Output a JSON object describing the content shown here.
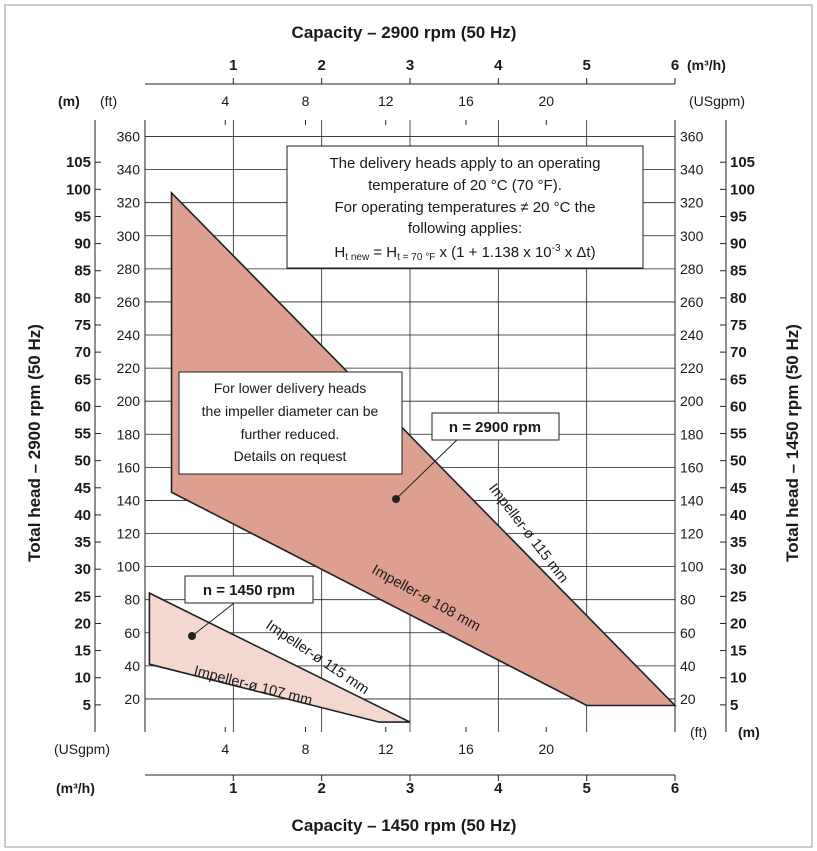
{
  "chart_data": {
    "type": "area",
    "title_top": "Capacity – 2900 rpm (50 Hz)",
    "title_bottom": "Capacity – 1450 rpm (50 Hz)",
    "ylabel_left": "Total head – 2900 rpm (50 Hz)",
    "ylabel_right": "Total head – 1450 rpm (50 Hz)",
    "units": {
      "m3h_top": "(m³/h)",
      "m3h_bottom": "(m³/h)",
      "usgpm_top": "(USgpm)",
      "usgpm_bottom": "(USgpm)",
      "m_left": "(m)",
      "m_right": "(m)",
      "ft_left": "(ft)",
      "ft_right": "(ft)"
    },
    "xlim_m3h": [
      0,
      6
    ],
    "ylim_ft": [
      0,
      370
    ],
    "x_ticks_m3h": [
      "1",
      "2",
      "3",
      "4",
      "5",
      "6"
    ],
    "x_ticks_usgpm": [
      "4",
      "8",
      "12",
      "16",
      "20"
    ],
    "y_ticks_ft": [
      "20",
      "40",
      "60",
      "80",
      "100",
      "120",
      "140",
      "160",
      "180",
      "200",
      "220",
      "240",
      "260",
      "280",
      "300",
      "320",
      "340",
      "360"
    ],
    "y_ticks_m_left": [
      "5",
      "10",
      "15",
      "20",
      "25",
      "30",
      "35",
      "40",
      "45",
      "50",
      "55",
      "60",
      "65",
      "70",
      "75",
      "80",
      "85",
      "90",
      "95",
      "100",
      "105"
    ],
    "y_ticks_m_right": [
      "5",
      "10",
      "15",
      "20",
      "25",
      "30",
      "35",
      "40",
      "45",
      "50",
      "55",
      "60",
      "65",
      "70",
      "75",
      "80",
      "85",
      "90",
      "95",
      "100",
      "105"
    ],
    "series": [
      {
        "name": "n = 2900 rpm",
        "color": "#dda090",
        "upper_curve_label": "Impeller-ø 115 mm",
        "lower_curve_label": "Impeller-ø 108 mm",
        "polygon": [
          [
            0.3,
            326
          ],
          [
            0.3,
            145
          ],
          [
            5,
            16
          ],
          [
            6,
            16
          ]
        ]
      },
      {
        "name": "n = 1450 rpm",
        "color": "#f4d8d0",
        "upper_curve_label": "Impeller-ø 115 mm",
        "lower_curve_label": "Impeller-ø 107 mm",
        "polygon": [
          [
            0.05,
            84
          ],
          [
            0.05,
            41
          ],
          [
            2.65,
            6
          ],
          [
            3,
            6
          ]
        ]
      }
    ],
    "annotations": {
      "temperature_note": [
        "The delivery heads apply to an operating",
        "temperature of 20 °C (70 °F).",
        "For operating temperatures ≠ 20 °C the",
        "following applies:"
      ],
      "formula": {
        "h1": "H",
        "sub1": "t new",
        "eq": " = ",
        "h2": "H",
        "sub2": "t = 70 °F",
        "rest_a": " x (1 + 1.138 x 10",
        "sup": "-3",
        "rest_b": " x Δt)"
      },
      "impeller_note": [
        "For lower delivery heads",
        "the impeller diameter can be",
        "further reduced.",
        "Details on request"
      ]
    }
  }
}
